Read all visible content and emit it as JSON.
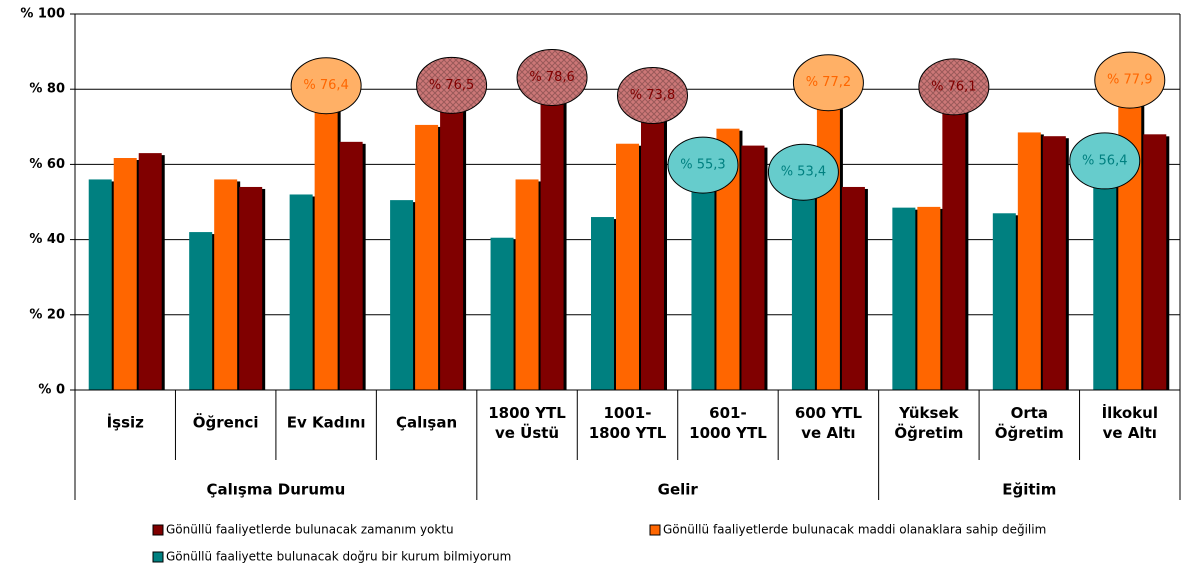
{
  "chart_data": {
    "type": "bar",
    "groups": [
      {
        "name": "Çalışma Durumu",
        "categories": [
          "İşsiz",
          "Öğrenci",
          "Ev Kadını",
          "Çalışan"
        ]
      },
      {
        "name": "Gelir",
        "categories": [
          "1800 YTL\nve Üstü",
          "1001-\n1800 YTL",
          "601-\n1000 YTL",
          "600 YTL\nve Altı"
        ]
      },
      {
        "name": "Eğitim",
        "categories": [
          "Yüksek\nÖğretim",
          "Orta\nÖğretim",
          "İlkokul\nve Altı"
        ]
      }
    ],
    "series": [
      {
        "name": "Gönüllü faaliyette bulunacak doğru bir kurum bilmiyorum",
        "color": "#008080",
        "values": [
          56,
          42,
          52,
          50.5,
          40.5,
          46,
          55.3,
          53.4,
          48.5,
          47,
          56.4
        ],
        "value_labels": [
          null,
          null,
          null,
          null,
          null,
          null,
          "% 55,3",
          "% 53,4",
          null,
          null,
          "% 56,4"
        ]
      },
      {
        "name": "Gönüllü faaliyetlerde bulunacak maddi olanaklara sahip değilim",
        "color": "#ff6600",
        "values": [
          61.7,
          56,
          76.4,
          70.5,
          56,
          65.5,
          69.5,
          77.2,
          48.7,
          68.5,
          77.9
        ],
        "value_labels": [
          null,
          null,
          "% 76,4",
          null,
          null,
          null,
          null,
          "% 77,2",
          null,
          null,
          "% 77,9"
        ]
      },
      {
        "name": "Gönüllü faaliyetlerde bulunacak zamanım yoktu",
        "color": "#800000",
        "values": [
          63,
          54,
          66,
          76.5,
          78.6,
          73.8,
          65,
          54,
          76.1,
          67.5,
          68
        ],
        "value_labels": [
          null,
          null,
          null,
          "% 76,5",
          "% 78,6",
          "% 73,8",
          null,
          null,
          "% 76,1",
          null,
          null
        ]
      }
    ],
    "ylim": [
      0,
      100
    ],
    "yticks": [
      {
        "value": 0,
        "label": "% 0"
      },
      {
        "value": 20,
        "label": "% 20"
      },
      {
        "value": 40,
        "label": "% 40"
      },
      {
        "value": 60,
        "label": "% 60"
      },
      {
        "value": 80,
        "label": "% 80"
      },
      {
        "value": 100,
        "label": "% 100"
      }
    ],
    "grid": true
  }
}
